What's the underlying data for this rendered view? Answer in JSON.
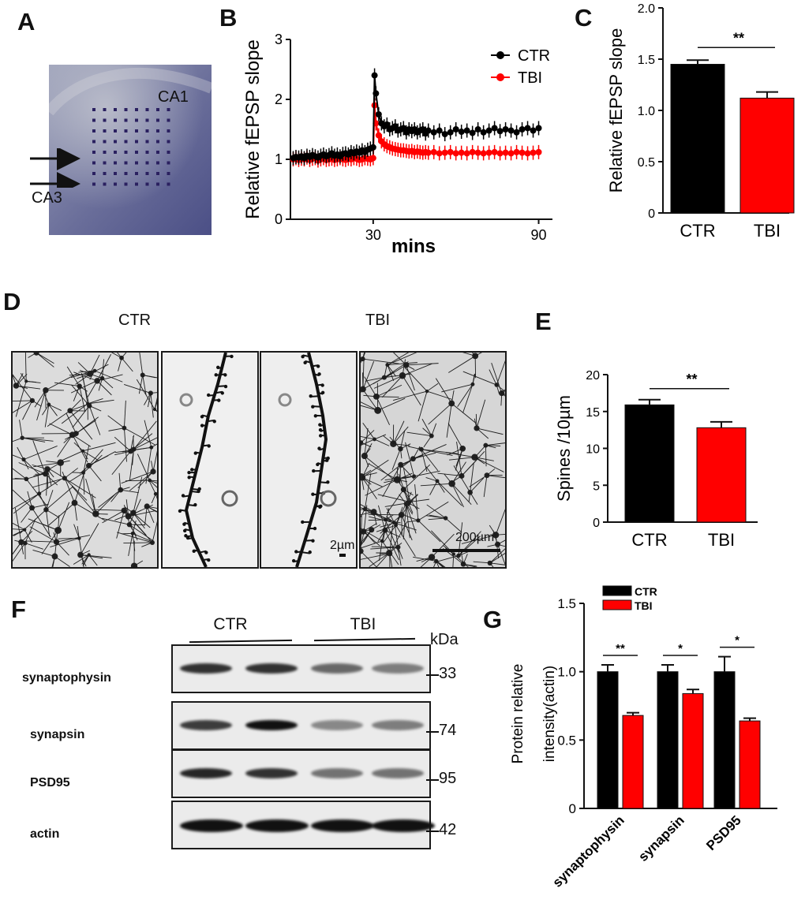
{
  "panels": {
    "A": "A",
    "B": "B",
    "C": "C",
    "D": "D",
    "E": "E",
    "F": "F",
    "G": "G"
  },
  "panelA": {
    "label_ca1": "CA1",
    "label_ca3": "CA3"
  },
  "panelD": {
    "group_ctr": "CTR",
    "group_tbi": "TBI",
    "scale_small": "2µm",
    "scale_large": "200µm"
  },
  "panelF": {
    "group_ctr": "CTR",
    "group_tbi": "TBI",
    "unit": "kDa",
    "rows": [
      {
        "name": "synaptophysin",
        "kda": "33"
      },
      {
        "name": "synapsin",
        "kda": "74"
      },
      {
        "name": "PSD95",
        "kda": "95"
      },
      {
        "name": "actin",
        "kda": "42"
      }
    ]
  },
  "colors": {
    "ctr": "#000000",
    "tbi": "#ff0000"
  },
  "chart_data": [
    {
      "id": "B",
      "type": "line",
      "xlabel": "mins",
      "ylabel": "Relative fEPSP slope",
      "xlim": [
        0,
        95
      ],
      "ylim": [
        0,
        3
      ],
      "xticks": [
        30,
        90
      ],
      "yticks": [
        0,
        1,
        2,
        3
      ],
      "legend_position": "top-right",
      "series": [
        {
          "name": "CTR",
          "color": "#000000",
          "x": [
            1,
            2,
            3,
            4,
            5,
            6,
            7,
            8,
            9,
            10,
            11,
            12,
            13,
            14,
            15,
            16,
            17,
            18,
            19,
            20,
            21,
            22,
            23,
            24,
            25,
            26,
            27,
            28,
            29,
            30,
            30.5,
            31,
            32,
            33,
            34,
            35,
            36,
            37,
            38,
            39,
            40,
            41,
            42,
            43,
            44,
            45,
            46,
            47,
            48,
            49,
            50,
            52,
            54,
            56,
            58,
            60,
            62,
            64,
            66,
            68,
            70,
            72,
            74,
            76,
            78,
            80,
            82,
            84,
            86,
            88,
            90
          ],
          "y": [
            1.02,
            1.04,
            1.03,
            1.05,
            1.02,
            1.06,
            1.04,
            1.07,
            1.05,
            1.03,
            1.06,
            1.08,
            1.05,
            1.07,
            1.1,
            1.06,
            1.08,
            1.05,
            1.09,
            1.1,
            1.08,
            1.12,
            1.1,
            1.13,
            1.11,
            1.15,
            1.12,
            1.16,
            1.18,
            1.2,
            2.4,
            2.1,
            1.75,
            1.6,
            1.55,
            1.58,
            1.5,
            1.52,
            1.55,
            1.48,
            1.5,
            1.52,
            1.45,
            1.5,
            1.47,
            1.5,
            1.45,
            1.48,
            1.5,
            1.43,
            1.48,
            1.45,
            1.48,
            1.42,
            1.45,
            1.5,
            1.46,
            1.48,
            1.44,
            1.5,
            1.45,
            1.48,
            1.52,
            1.47,
            1.5,
            1.48,
            1.45,
            1.5,
            1.52,
            1.48,
            1.52
          ]
        },
        {
          "name": "TBI",
          "color": "#ff0000",
          "x": [
            1,
            2,
            3,
            4,
            5,
            6,
            7,
            8,
            9,
            10,
            11,
            12,
            13,
            14,
            15,
            16,
            17,
            18,
            19,
            20,
            21,
            22,
            23,
            24,
            25,
            26,
            27,
            28,
            29,
            30,
            30.5,
            31,
            32,
            33,
            34,
            35,
            36,
            37,
            38,
            39,
            40,
            41,
            42,
            43,
            44,
            45,
            46,
            47,
            48,
            49,
            50,
            52,
            54,
            56,
            58,
            60,
            62,
            64,
            66,
            68,
            70,
            72,
            74,
            76,
            78,
            80,
            82,
            84,
            86,
            88,
            90
          ],
          "y": [
            1.0,
            1.02,
            0.99,
            1.01,
            1.0,
            1.03,
            0.99,
            1.01,
            1.02,
            0.98,
            1.0,
            1.02,
            0.99,
            1.0,
            1.01,
            0.99,
            1.0,
            1.02,
            1.0,
            0.99,
            1.01,
            1.0,
            1.02,
            1.01,
            0.99,
            1.0,
            1.02,
            1.01,
            1.0,
            1.02,
            1.9,
            1.6,
            1.4,
            1.3,
            1.25,
            1.22,
            1.2,
            1.18,
            1.17,
            1.16,
            1.15,
            1.15,
            1.14,
            1.13,
            1.14,
            1.12,
            1.13,
            1.12,
            1.11,
            1.12,
            1.11,
            1.12,
            1.1,
            1.11,
            1.12,
            1.1,
            1.11,
            1.1,
            1.12,
            1.11,
            1.1,
            1.11,
            1.12,
            1.1,
            1.11,
            1.1,
            1.12,
            1.11,
            1.1,
            1.11,
            1.12
          ]
        }
      ]
    },
    {
      "id": "C",
      "type": "bar",
      "ylabel": "Relative fEPSP slope",
      "ylim": [
        0,
        2.0
      ],
      "yticks": [
        0,
        0.5,
        1.0,
        1.5,
        2.0
      ],
      "yticklabels": [
        "0",
        "0.5",
        "1.0",
        "1.5",
        "2.0"
      ],
      "categories": [
        "CTR",
        "TBI"
      ],
      "values": [
        1.45,
        1.12
      ],
      "errors": [
        0.04,
        0.06
      ],
      "colors": [
        "#000000",
        "#ff0000"
      ],
      "significance": "**"
    },
    {
      "id": "E",
      "type": "bar",
      "ylabel": "Spines /10µm",
      "ylim": [
        0,
        20
      ],
      "yticks": [
        0,
        5,
        10,
        15,
        20
      ],
      "yticklabels": [
        "0",
        "5",
        "10",
        "15",
        "20"
      ],
      "categories": [
        "CTR",
        "TBI"
      ],
      "values": [
        15.9,
        12.8
      ],
      "errors": [
        0.7,
        0.8
      ],
      "colors": [
        "#000000",
        "#ff0000"
      ],
      "significance": "**"
    },
    {
      "id": "G",
      "type": "bar",
      "ylabel_line1": "Protein relative",
      "ylabel_line2": "intensity(actin)",
      "ylim": [
        0,
        1.5
      ],
      "yticks": [
        0,
        0.5,
        1.0,
        1.5
      ],
      "yticklabels": [
        "0",
        "0.5",
        "1.0",
        "1.5"
      ],
      "categories": [
        "synaptophysin",
        "synapsin",
        "PSD95"
      ],
      "series": [
        {
          "name": "CTR",
          "color": "#000000",
          "values": [
            1.0,
            1.0,
            1.0
          ],
          "errors": [
            0.05,
            0.05,
            0.11
          ]
        },
        {
          "name": "TBI",
          "color": "#ff0000",
          "values": [
            0.68,
            0.84,
            0.64
          ],
          "errors": [
            0.02,
            0.03,
            0.02
          ]
        }
      ],
      "significance": [
        "**",
        "*",
        "*"
      ],
      "legend_position": "top-left"
    }
  ]
}
